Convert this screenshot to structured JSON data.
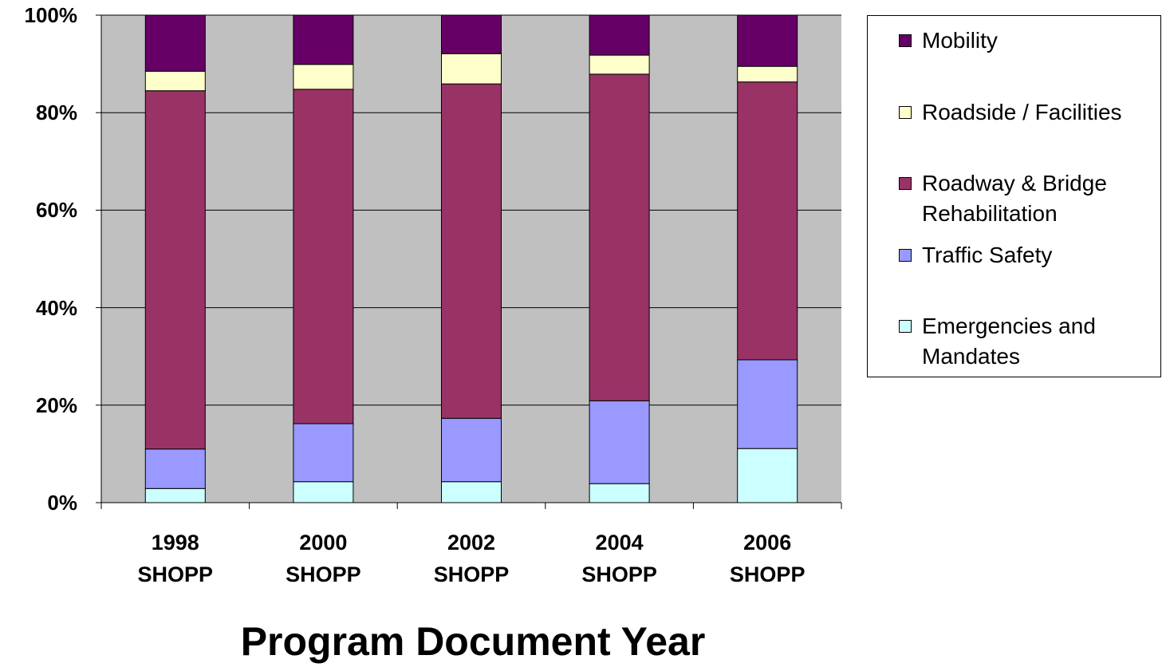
{
  "chart_data": {
    "type": "stacked_bar",
    "x_label": "Program Document Year",
    "categories": [
      "1998 SHOPP",
      "2000 SHOPP",
      "2002 SHOPP",
      "2004 SHOPP",
      "2006 SHOPP"
    ],
    "series": [
      {
        "name": "Emergencies and Mandates",
        "color": "#ccffff",
        "values": [
          2.9,
          4.3,
          4.3,
          3.9,
          11.1
        ]
      },
      {
        "name": "Traffic Safety",
        "color": "#9999ff",
        "values": [
          8.1,
          11.9,
          13.0,
          17.0,
          18.2
        ]
      },
      {
        "name": "Roadway & Bridge Rehabilitation",
        "color": "#993366",
        "values": [
          73.5,
          68.6,
          68.6,
          67.0,
          57.0
        ]
      },
      {
        "name": "Roadside / Facilities",
        "color": "#ffffcc",
        "values": [
          4.0,
          5.1,
          6.2,
          3.9,
          3.2
        ]
      },
      {
        "name": "Mobility",
        "color": "#660066",
        "values": [
          11.5,
          10.1,
          7.9,
          8.2,
          10.5
        ]
      }
    ],
    "ylim": [
      0,
      100
    ],
    "yticks": [
      {
        "value": 0,
        "label": "0%"
      },
      {
        "value": 20,
        "label": "20%"
      },
      {
        "value": 40,
        "label": "40%"
      },
      {
        "value": 60,
        "label": "60%"
      },
      {
        "value": 80,
        "label": "80%"
      },
      {
        "value": 100,
        "label": "100%"
      }
    ],
    "grid": true,
    "legend": "right",
    "plot_background": "#c0c0c0"
  }
}
